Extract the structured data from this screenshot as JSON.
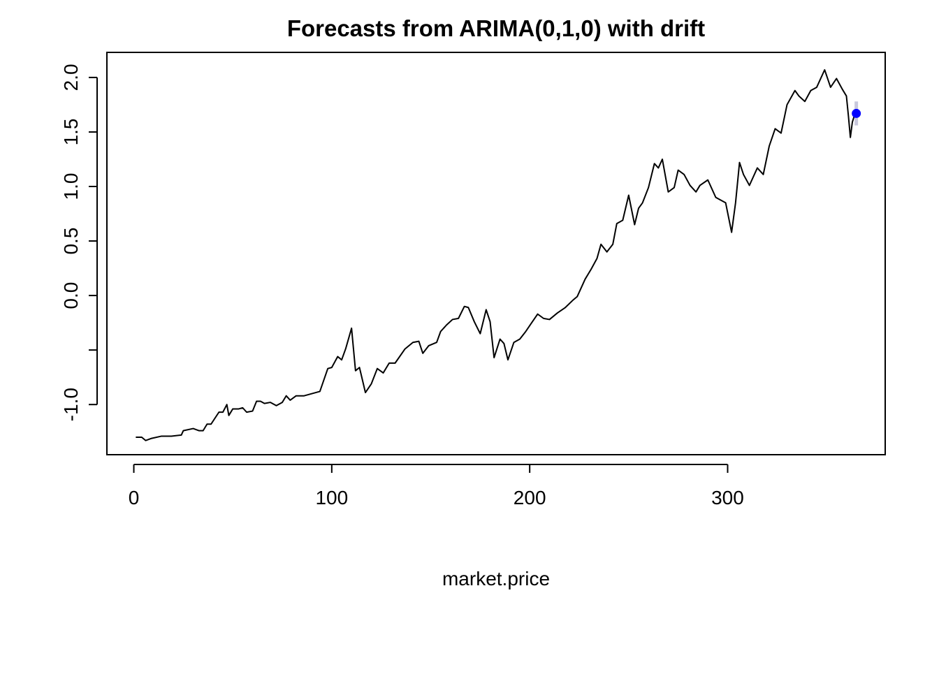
{
  "chart_data": {
    "type": "line",
    "title": "Forecasts from ARIMA(0,1,0) with drift",
    "xlabel": "market.price",
    "x": [
      1,
      4,
      6,
      9,
      14,
      19,
      24,
      25,
      30,
      33,
      35,
      37,
      39,
      43,
      45,
      47,
      48,
      50,
      53,
      55,
      57,
      60,
      62,
      64,
      66,
      69,
      72,
      75,
      77,
      79,
      82,
      86,
      90,
      94,
      98,
      100,
      103,
      105,
      107,
      110,
      112,
      114,
      117,
      120,
      123,
      126,
      129,
      132,
      137,
      141,
      144,
      146,
      149,
      153,
      155,
      158,
      161,
      164,
      167,
      169,
      172,
      175,
      178,
      180,
      182,
      185,
      187,
      189,
      192,
      195,
      198,
      201,
      204,
      207,
      210,
      214,
      218,
      222,
      224,
      228,
      231,
      234,
      236,
      239,
      242,
      244,
      247,
      250,
      253,
      255,
      257,
      260,
      263,
      265,
      267,
      270,
      273,
      275,
      278,
      281,
      284,
      286,
      290,
      294,
      299,
      302,
      304,
      306,
      308,
      311,
      315,
      318,
      321,
      324,
      327,
      330,
      334,
      336,
      339,
      342,
      345,
      349,
      352,
      355,
      358,
      360,
      361,
      362,
      363,
      364
    ],
    "values": [
      -1.3,
      -1.3,
      -1.33,
      -1.31,
      -1.29,
      -1.29,
      -1.28,
      -1.24,
      -1.22,
      -1.24,
      -1.24,
      -1.18,
      -1.18,
      -1.07,
      -1.07,
      -1.0,
      -1.1,
      -1.04,
      -1.04,
      -1.03,
      -1.07,
      -1.06,
      -0.97,
      -0.97,
      -0.99,
      -0.98,
      -1.01,
      -0.98,
      -0.92,
      -0.96,
      -0.92,
      -0.92,
      -0.9,
      -0.88,
      -0.67,
      -0.66,
      -0.56,
      -0.59,
      -0.49,
      -0.3,
      -0.69,
      -0.66,
      -0.89,
      -0.81,
      -0.67,
      -0.71,
      -0.62,
      -0.62,
      -0.49,
      -0.43,
      -0.42,
      -0.53,
      -0.46,
      -0.43,
      -0.33,
      -0.27,
      -0.22,
      -0.21,
      -0.1,
      -0.11,
      -0.24,
      -0.35,
      -0.13,
      -0.24,
      -0.57,
      -0.4,
      -0.44,
      -0.59,
      -0.43,
      -0.4,
      -0.33,
      -0.25,
      -0.17,
      -0.21,
      -0.22,
      -0.16,
      -0.11,
      -0.04,
      -0.01,
      0.15,
      0.24,
      0.34,
      0.47,
      0.4,
      0.47,
      0.66,
      0.69,
      0.92,
      0.65,
      0.8,
      0.85,
      0.99,
      1.21,
      1.17,
      1.25,
      0.95,
      0.99,
      1.15,
      1.11,
      1.01,
      0.95,
      1.01,
      1.06,
      0.9,
      0.85,
      0.58,
      0.85,
      1.22,
      1.11,
      1.01,
      1.17,
      1.11,
      1.37,
      1.53,
      1.49,
      1.75,
      1.88,
      1.83,
      1.78,
      1.88,
      1.91,
      2.07,
      1.91,
      1.99,
      1.89,
      1.83,
      1.65,
      1.45,
      1.59,
      1.65
    ],
    "color": "#000000",
    "forecast": {
      "x": 365,
      "value": 1.67,
      "lower": 1.56,
      "upper": 1.78,
      "color": "#0000ff",
      "interval_color": "#c8c8dc"
    },
    "xlim": [
      -13.6,
      379.6
    ],
    "ylim": [
      -1.46,
      2.23
    ],
    "xticks": [
      0,
      100,
      200,
      300
    ],
    "yticks": [
      {
        "value": -1.0,
        "label": "-1.0"
      },
      {
        "value": -0.5,
        "label": null
      },
      {
        "value": 0.0,
        "label": "0.0"
      },
      {
        "value": 0.5,
        "label": "0.5"
      },
      {
        "value": 1.0,
        "label": "1.0"
      },
      {
        "value": 1.5,
        "label": "1.5"
      },
      {
        "value": 2.0,
        "label": "2.0"
      }
    ]
  }
}
